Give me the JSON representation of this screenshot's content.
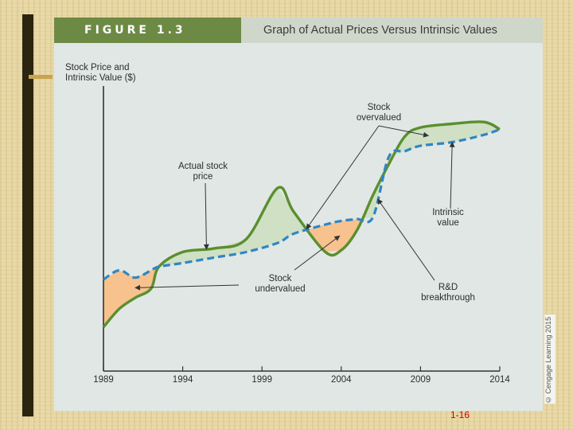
{
  "figure": {
    "number": "FIGURE 1.3",
    "title": "Graph of Actual Prices Versus Intrinsic Values",
    "copyright": "© Cengage Learning 2015"
  },
  "slide": {
    "page_number": "1-16"
  },
  "colors": {
    "actual_price": "#5a8f2e",
    "intrinsic_value": "#2f86c4",
    "overvalued_fill": "#cfe0c4",
    "undervalued_fill": "#f7c28e",
    "header_green": "#6c8a44",
    "panel": "#e1e7e5"
  },
  "chart_data": {
    "type": "line",
    "title": "Graph of Actual Prices Versus Intrinsic Values",
    "ylabel": "Stock Price and Intrinsic Value ($)",
    "xlabel": "",
    "x_ticks": [
      "1989",
      "1994",
      "1999",
      "2004",
      "2009",
      "2014"
    ],
    "xlim": [
      1989,
      2014
    ],
    "y_axis_numeric_ticks": false,
    "grid": false,
    "series": [
      {
        "key": "actual",
        "style": "solid"
      },
      {
        "key": "intrinsic",
        "style": "dashed"
      }
    ],
    "x": [
      1989,
      1990,
      1991,
      1992,
      1992.5,
      1994,
      1996,
      1998,
      2000,
      2001,
      2003,
      2004,
      2005,
      2006,
      2007,
      2008,
      2009,
      2011,
      2013,
      2014
    ],
    "actual": [
      12.0,
      17.0,
      20.0,
      22.5,
      28.5,
      32.5,
      33.5,
      36.0,
      50.0,
      43.5,
      32.5,
      33.0,
      38.5,
      48.0,
      56.5,
      64.0,
      66.5,
      67.5,
      68.0,
      66.0
    ],
    "intrinsic": [
      25.0,
      27.5,
      25.5,
      27.5,
      28.5,
      29.5,
      31.0,
      32.5,
      35.0,
      37.5,
      40.0,
      41.0,
      41.5,
      42.0,
      58.5,
      60.0,
      61.5,
      62.5,
      64.5,
      66.0
    ],
    "annotations": [
      {
        "text": [
          "Actual stock",
          "price"
        ],
        "points_to": {
          "series": "actual",
          "x": 1995.5
        }
      },
      {
        "text": [
          "Stock",
          "overvalued"
        ],
        "points_to": [
          {
            "region": "overvalued",
            "x": 2001.8
          },
          {
            "region": "overvalued",
            "x": 2009.5
          }
        ]
      },
      {
        "text": [
          "Intrinsic",
          "value"
        ],
        "points_to": {
          "series": "intrinsic",
          "x": 2011
        }
      },
      {
        "text": [
          "Stock",
          "undervalued"
        ],
        "points_to": [
          {
            "region": "undervalued",
            "x": 1991
          },
          {
            "region": "undervalued",
            "x": 2003.9
          }
        ]
      },
      {
        "text": [
          "R&D",
          "breakthrough"
        ],
        "points_to": {
          "series": "intrinsic",
          "x": 2006.3
        }
      }
    ]
  }
}
